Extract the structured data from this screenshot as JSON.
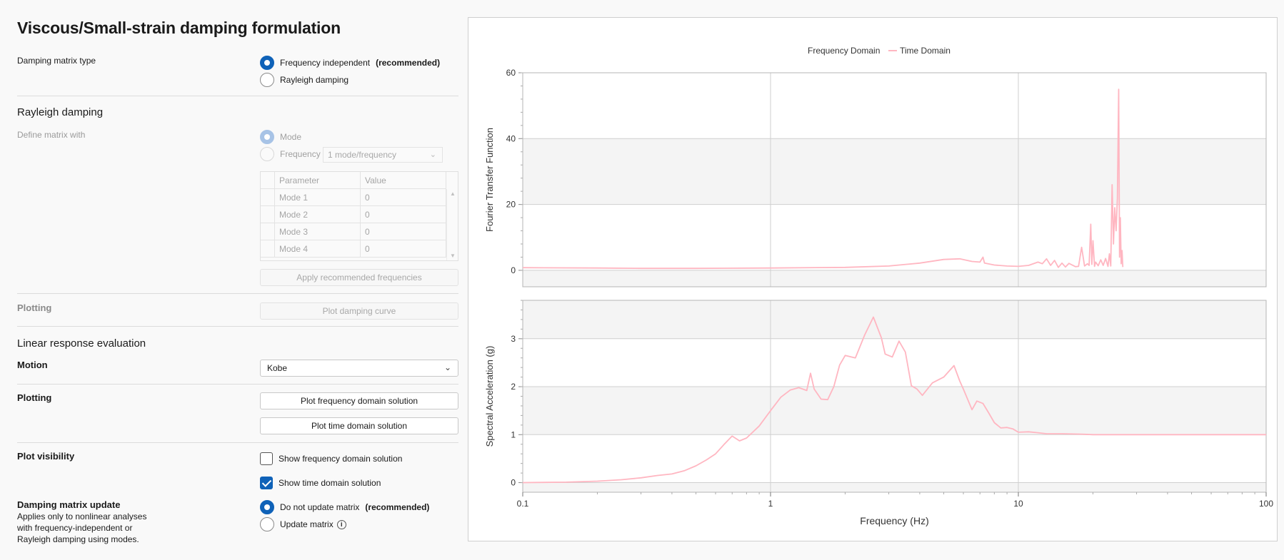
{
  "left": {
    "title": "Viscous/Small-strain damping formulation",
    "damping_matrix_type": {
      "label": "Damping matrix type",
      "options": [
        {
          "label": "Frequency independent",
          "suffix": "(recommended)",
          "selected": true
        },
        {
          "label": "Rayleigh damping",
          "suffix": "",
          "selected": false
        }
      ]
    },
    "rayleigh": {
      "heading": "Rayleigh damping",
      "define_label": "Define matrix with",
      "mode_label": "Mode",
      "frequency_label": "Frequency",
      "frequency_select": "1 mode/frequency",
      "grid_headers": [
        "Parameter",
        "Value"
      ],
      "grid_rows": [
        {
          "param": "Mode 1",
          "value": "0"
        },
        {
          "param": "Mode 2",
          "value": "0"
        },
        {
          "param": "Mode 3",
          "value": "0"
        },
        {
          "param": "Mode 4",
          "value": "0"
        }
      ],
      "apply_button": "Apply recommended frequencies",
      "plotting_label": "Plotting",
      "plot_damping_button": "Plot damping curve"
    },
    "linear": {
      "heading": "Linear response evaluation",
      "motion_label": "Motion",
      "motion_value": "Kobe",
      "plotting_label": "Plotting",
      "plot_freq_button": "Plot frequency domain solution",
      "plot_time_button": "Plot time domain solution",
      "visibility_label": "Plot visibility",
      "show_freq": {
        "label": "Show frequency domain solution",
        "checked": false
      },
      "show_time": {
        "label": "Show time domain solution",
        "checked": true
      }
    },
    "update": {
      "label": "Damping matrix update",
      "desc_lines": [
        "Applies only to nonlinear analyses",
        "with frequency-independent or",
        "Rayleigh damping using modes."
      ],
      "options": [
        {
          "label": "Do not update matrix",
          "suffix": "(recommended)",
          "selected": true
        },
        {
          "label": "Update matrix",
          "selected": false
        }
      ]
    }
  },
  "chart_data": [
    {
      "type": "line",
      "legend": [
        "Frequency Domain",
        "Time Domain"
      ],
      "legend_position": "top-center",
      "ylabel": "Fourier Transfer Function",
      "xscale": "log",
      "xlim": [
        0.1,
        100
      ],
      "ylim": [
        -5,
        60
      ],
      "yticks": [
        0,
        20,
        40,
        60
      ],
      "grid": true,
      "series": [
        {
          "name": "Time Domain",
          "color": "#ffb6c1",
          "x": [
            0.1,
            0.2,
            0.3,
            0.5,
            1,
            2,
            3,
            4,
            5,
            5.8,
            6.5,
            7,
            7.2,
            7.3,
            8,
            9,
            10,
            11,
            12,
            12.5,
            13,
            13.5,
            14,
            14.5,
            15,
            15.5,
            16,
            17,
            17.5,
            18,
            18.5,
            19,
            19.3,
            19.6,
            19.8,
            20,
            20.3,
            20.5,
            21,
            21.5,
            22,
            22.5,
            23,
            23.3,
            23.6,
            23.9,
            24.2,
            24.5,
            24.8,
            25.1,
            25.4,
            25.6,
            25.8,
            26,
            26.2,
            26.4
          ],
          "y": [
            0.8,
            0.7,
            0.6,
            0.6,
            0.7,
            0.9,
            1.3,
            2.2,
            3.3,
            3.5,
            2.7,
            2.5,
            4,
            2.2,
            1.6,
            1.3,
            1.2,
            1.5,
            2.5,
            2,
            3.5,
            1.5,
            3,
            0.9,
            2.2,
            1,
            2.1,
            1.1,
            1.2,
            7,
            1.3,
            2,
            1.5,
            14,
            1.8,
            9,
            1.2,
            2.5,
            1.4,
            3.2,
            1.5,
            3.6,
            1.2,
            5,
            1.3,
            26,
            8,
            19,
            12,
            22,
            55,
            4,
            16,
            2,
            6,
            1
          ]
        }
      ]
    },
    {
      "type": "line",
      "ylabel": "Spectral Acceleration (g)",
      "xlabel": "Frequency (Hz)",
      "xscale": "log",
      "xlim": [
        0.1,
        100
      ],
      "ylim": [
        -0.2,
        3.8
      ],
      "yticks": [
        0,
        1,
        2,
        3
      ],
      "xticks": [
        0.1,
        1,
        10,
        100
      ],
      "grid": true,
      "series": [
        {
          "name": "Time Domain",
          "color": "#ffb6c1",
          "x": [
            0.1,
            0.15,
            0.2,
            0.25,
            0.3,
            0.35,
            0.4,
            0.45,
            0.5,
            0.55,
            0.6,
            0.65,
            0.7,
            0.75,
            0.8,
            0.9,
            1.0,
            1.1,
            1.2,
            1.3,
            1.4,
            1.45,
            1.5,
            1.6,
            1.7,
            1.8,
            1.9,
            2.0,
            2.2,
            2.4,
            2.6,
            2.8,
            2.9,
            3.1,
            3.3,
            3.5,
            3.7,
            3.9,
            4.1,
            4.5,
            5.0,
            5.5,
            5.8,
            6.0,
            6.5,
            6.8,
            7.2,
            7.6,
            8.0,
            8.5,
            9.0,
            9.5,
            10,
            11,
            12,
            13,
            15,
            18,
            20,
            25,
            30,
            50,
            100
          ],
          "y": [
            0.0,
            0.01,
            0.03,
            0.06,
            0.1,
            0.15,
            0.18,
            0.25,
            0.35,
            0.47,
            0.6,
            0.8,
            0.97,
            0.87,
            0.93,
            1.18,
            1.5,
            1.78,
            1.93,
            1.98,
            1.92,
            2.28,
            1.95,
            1.74,
            1.73,
            2.0,
            2.45,
            2.65,
            2.6,
            3.08,
            3.45,
            3.02,
            2.68,
            2.62,
            2.95,
            2.72,
            2.02,
            1.95,
            1.82,
            2.08,
            2.2,
            2.44,
            2.12,
            1.95,
            1.52,
            1.7,
            1.65,
            1.45,
            1.25,
            1.14,
            1.15,
            1.12,
            1.05,
            1.06,
            1.04,
            1.02,
            1.02,
            1.01,
            1.0,
            1.0,
            1.0,
            1.0,
            1.0
          ]
        }
      ]
    }
  ]
}
